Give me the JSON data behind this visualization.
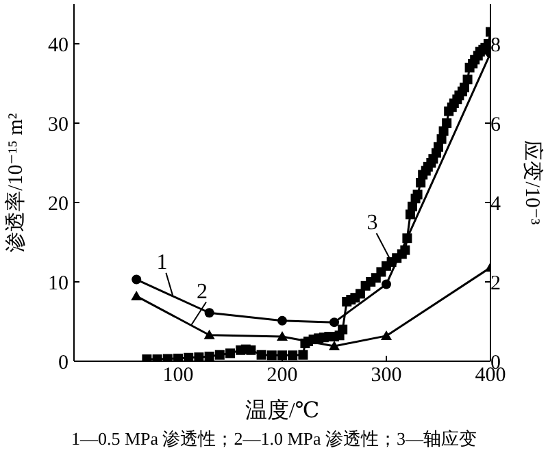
{
  "chart_data": {
    "type": "line",
    "xlabel": "温度/℃",
    "ylabel": "渗透率/10⁻¹⁵ m²",
    "y2label": "应变/10⁻³",
    "xlim": [
      0,
      400
    ],
    "xticks": [
      100,
      200,
      300,
      400
    ],
    "ylim": [
      0,
      45
    ],
    "yticks": [
      0,
      10,
      20,
      30,
      40
    ],
    "y2lim": [
      0,
      9
    ],
    "y2ticks": [
      0,
      2,
      4,
      6,
      8
    ],
    "annotations": [
      "1—0.5 MPa 渗透性；2—1.0 MPa 渗透性；3—轴应变"
    ],
    "series": [
      {
        "name": "1",
        "color": "#000000",
        "marker": "circle",
        "x": [
          60,
          130,
          200,
          250,
          300,
          400
        ],
        "values": [
          10.3,
          6.1,
          5.1,
          4.9,
          9.7,
          38.8
        ]
      },
      {
        "name": "2",
        "color": "#000000",
        "marker": "triangle",
        "x": [
          60,
          130,
          200,
          250,
          300,
          400
        ],
        "values": [
          8.2,
          3.3,
          3.1,
          1.9,
          3.2,
          11.8
        ]
      },
      {
        "name": "3",
        "color": "#000000",
        "marker": "square",
        "axis": "y2",
        "x": [
          70,
          80,
          90,
          100,
          110,
          120,
          130,
          140,
          150,
          160,
          165,
          170,
          180,
          190,
          200,
          210,
          220,
          222,
          225,
          230,
          235,
          240,
          245,
          250,
          255,
          258,
          262,
          266,
          270,
          275,
          280,
          285,
          290,
          295,
          300,
          305,
          310,
          315,
          318,
          320,
          323,
          325,
          328,
          330,
          333,
          335,
          338,
          340,
          343,
          345,
          348,
          350,
          353,
          355,
          358,
          360,
          363,
          365,
          368,
          370,
          373,
          375,
          378,
          380,
          383,
          385,
          388,
          390,
          393,
          395,
          398,
          400
        ],
        "values": [
          0.05,
          0.05,
          0.06,
          0.07,
          0.09,
          0.1,
          0.12,
          0.16,
          0.2,
          0.28,
          0.3,
          0.28,
          0.16,
          0.15,
          0.15,
          0.15,
          0.16,
          0.45,
          0.5,
          0.55,
          0.58,
          0.6,
          0.62,
          0.62,
          0.65,
          0.8,
          1.5,
          1.55,
          1.6,
          1.7,
          1.9,
          2.0,
          2.1,
          2.25,
          2.4,
          2.5,
          2.6,
          2.7,
          2.8,
          3.1,
          3.7,
          3.9,
          4.1,
          4.2,
          4.5,
          4.7,
          4.8,
          4.9,
          5.0,
          5.1,
          5.25,
          5.4,
          5.6,
          5.8,
          6.0,
          6.3,
          6.4,
          6.5,
          6.6,
          6.7,
          6.8,
          6.9,
          7.1,
          7.4,
          7.5,
          7.6,
          7.7,
          7.8,
          7.85,
          7.9,
          8.0,
          8.3
        ]
      }
    ]
  }
}
